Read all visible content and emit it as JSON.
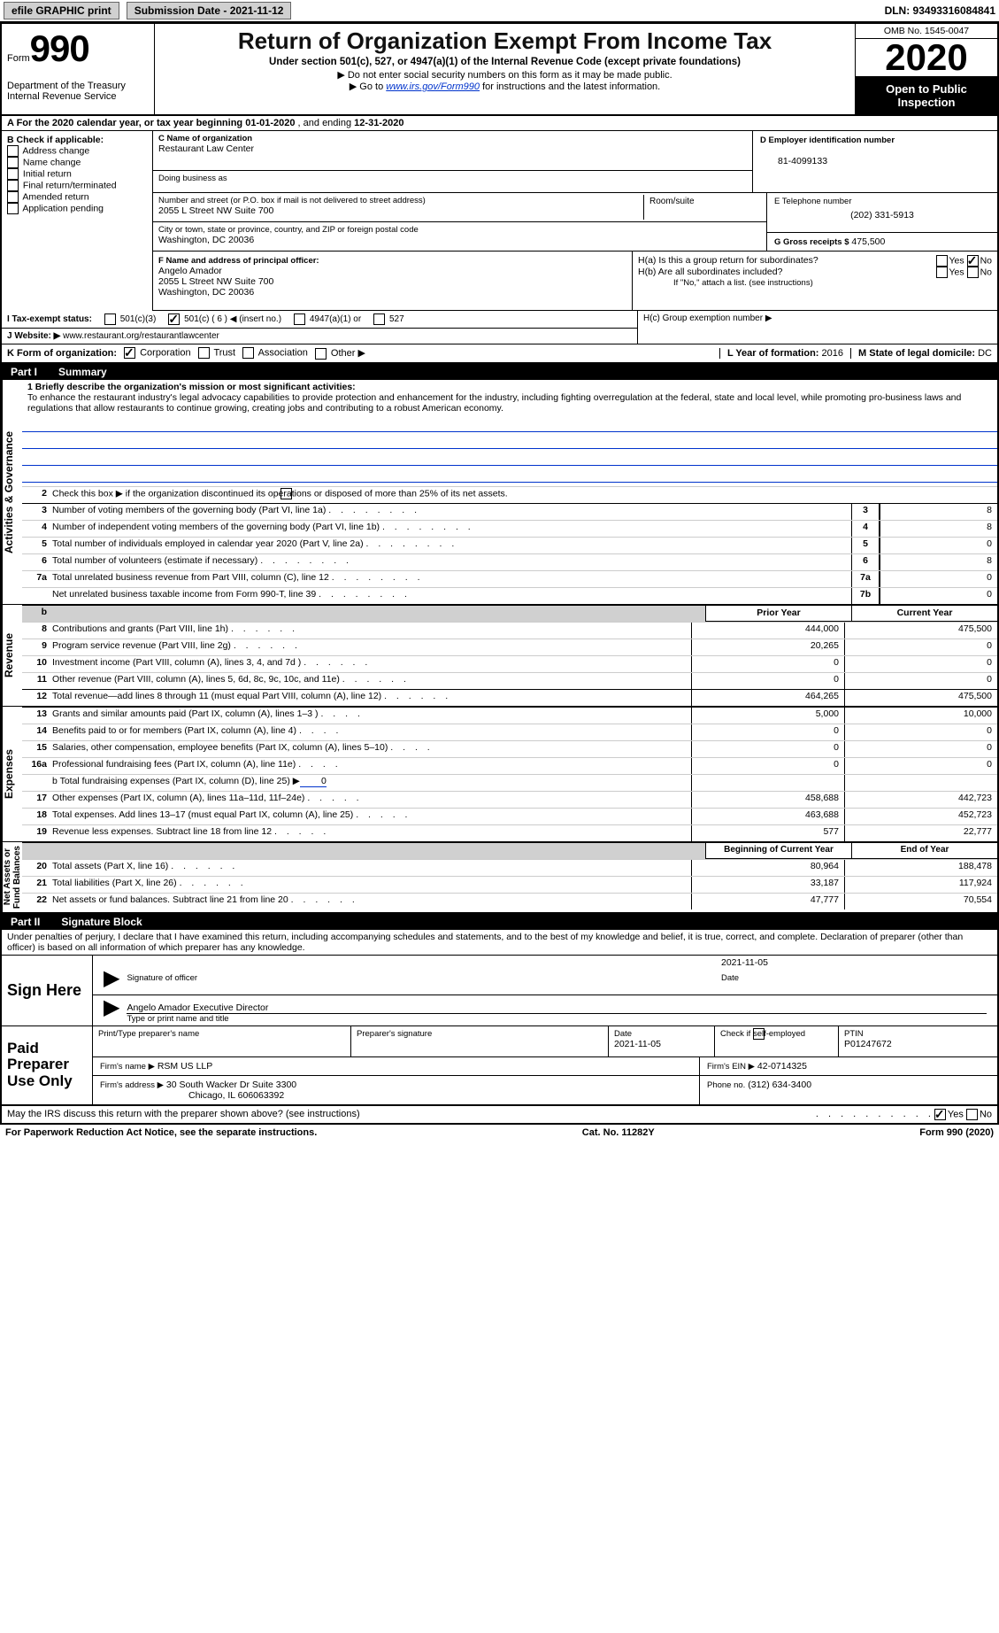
{
  "topbar": {
    "efile": "efile GRAPHIC print",
    "sub_label": "Submission Date - 2021-11-12",
    "dln": "DLN: 93493316084841"
  },
  "header": {
    "form_word": "Form",
    "form_num": "990",
    "dept": "Department of the Treasury\nInternal Revenue Service",
    "title": "Return of Organization Exempt From Income Tax",
    "subtitle": "Under section 501(c), 527, or 4947(a)(1) of the Internal Revenue Code (except private foundations)",
    "note1": "▶ Do not enter social security numbers on this form as it may be made public.",
    "note2a": "▶ Go to ",
    "note2_link": "www.irs.gov/Form990",
    "note2b": " for instructions and the latest information.",
    "omb": "OMB No. 1545-0047",
    "year": "2020",
    "open": "Open to Public Inspection"
  },
  "periodA": {
    "prefix": "A  For the 2020 calendar year, or tax year beginning ",
    "begin": "01-01-2020",
    "mid": "  , and ending ",
    "end": "12-31-2020"
  },
  "B": {
    "heading": "B Check if applicable:",
    "opts": [
      "Address change",
      "Name change",
      "Initial return",
      "Final return/terminated",
      "Amended return",
      "Application pending"
    ]
  },
  "C": {
    "label": "C Name of organization",
    "name": "Restaurant Law Center",
    "dba_label": "Doing business as",
    "street_label": "Number and street (or P.O. box if mail is not delivered to street address)",
    "street": "2055 L Street NW Suite 700",
    "room_label": "Room/suite",
    "city_label": "City or town, state or province, country, and ZIP or foreign postal code",
    "city": "Washington, DC  20036"
  },
  "D": {
    "label": "D Employer identification number",
    "ein": "81-4099133"
  },
  "E": {
    "label": "E Telephone number",
    "phone": "(202) 331-5913"
  },
  "G": {
    "label": "G Gross receipts $",
    "amount": "475,500"
  },
  "F": {
    "label": "F  Name and address of principal officer:",
    "name": "Angelo Amador",
    "addr1": "2055 L Street NW Suite 700",
    "addr2": "Washington, DC  20036"
  },
  "H": {
    "a": "H(a)  Is this a group return for subordinates?",
    "b": "H(b)  Are all subordinates included?",
    "b_note": "If \"No,\" attach a list. (see instructions)",
    "c": "H(c)  Group exemption number ▶"
  },
  "I": {
    "label": "I   Tax-exempt status:",
    "c3": "501(c)(3)",
    "c": "501(c) (",
    "c_num": "6",
    "c_tail": ") ◀ (insert no.)",
    "a4947": "4947(a)(1) or",
    "s527": "527"
  },
  "J": {
    "label": "J  Website: ▶",
    "site": " www.restaurant.org/restaurantlawcenter"
  },
  "K": {
    "label": "K Form of organization:",
    "opts": [
      "Corporation",
      "Trust",
      "Association",
      "Other ▶"
    ]
  },
  "L": {
    "label": "L Year of formation:",
    "val": "2016"
  },
  "M": {
    "label": "M State of legal domicile:",
    "val": "DC"
  },
  "partI": {
    "num": "Part I",
    "title": "Summary"
  },
  "summary": {
    "l1_label": "1  Briefly describe the organization's mission or most significant activities:",
    "mission": "To enhance the restaurant industry's legal advocacy capabilities to provide protection and enhancement for the industry, including fighting overregulation at the federal, state and local level, while promoting pro-business laws and regulations that allow restaurants to continue growing, creating jobs and contributing to a robust American economy.",
    "l2": "Check this box ▶        if the organization discontinued its operations or disposed of more than 25% of its net assets.",
    "lines_gov": [
      {
        "n": "3",
        "t": "Number of voting members of the governing body (Part VI, line 1a)",
        "box": "3",
        "v": "8"
      },
      {
        "n": "4",
        "t": "Number of independent voting members of the governing body (Part VI, line 1b)",
        "box": "4",
        "v": "8"
      },
      {
        "n": "5",
        "t": "Total number of individuals employed in calendar year 2020 (Part V, line 2a)",
        "box": "5",
        "v": "0"
      },
      {
        "n": "6",
        "t": "Total number of volunteers (estimate if necessary)",
        "box": "6",
        "v": "8"
      },
      {
        "n": "7a",
        "t": "Total unrelated business revenue from Part VIII, column (C), line 12",
        "box": "7a",
        "v": "0"
      },
      {
        "n": "",
        "t": "Net unrelated business taxable income from Form 990-T, line 39",
        "box": "7b",
        "v": "0"
      }
    ],
    "prior_hdr": "Prior Year",
    "current_hdr": "Current Year",
    "rev_lines": [
      {
        "n": "8",
        "t": "Contributions and grants (Part VIII, line 1h)",
        "p": "444,000",
        "c": "475,500"
      },
      {
        "n": "9",
        "t": "Program service revenue (Part VIII, line 2g)",
        "p": "20,265",
        "c": "0"
      },
      {
        "n": "10",
        "t": "Investment income (Part VIII, column (A), lines 3, 4, and 7d )",
        "p": "0",
        "c": "0"
      },
      {
        "n": "11",
        "t": "Other revenue (Part VIII, column (A), lines 5, 6d, 8c, 9c, 10c, and 11e)",
        "p": "0",
        "c": "0"
      },
      {
        "n": "12",
        "t": "Total revenue—add lines 8 through 11 (must equal Part VIII, column (A), line 12)",
        "p": "464,265",
        "c": "475,500"
      }
    ],
    "exp_lines": [
      {
        "n": "13",
        "t": "Grants and similar amounts paid (Part IX, column (A), lines 1–3 )",
        "p": "5,000",
        "c": "10,000"
      },
      {
        "n": "14",
        "t": "Benefits paid to or for members (Part IX, column (A), line 4)",
        "p": "0",
        "c": "0"
      },
      {
        "n": "15",
        "t": "Salaries, other compensation, employee benefits (Part IX, column (A), lines 5–10)",
        "p": "0",
        "c": "0"
      },
      {
        "n": "16a",
        "t": "Professional fundraising fees (Part IX, column (A), line 11e)",
        "p": "0",
        "c": "0"
      }
    ],
    "l16b": "b  Total fundraising expenses (Part IX, column (D), line 25) ▶",
    "l16b_val": "0",
    "exp_lines2": [
      {
        "n": "17",
        "t": "Other expenses (Part IX, column (A), lines 11a–11d, 11f–24e)",
        "p": "458,688",
        "c": "442,723"
      },
      {
        "n": "18",
        "t": "Total expenses. Add lines 13–17 (must equal Part IX, column (A), line 25)",
        "p": "463,688",
        "c": "452,723"
      },
      {
        "n": "19",
        "t": "Revenue less expenses. Subtract line 18 from line 12",
        "p": "577",
        "c": "22,777"
      }
    ],
    "na_hdr1": "Beginning of Current Year",
    "na_hdr2": "End of Year",
    "na_lines": [
      {
        "n": "20",
        "t": "Total assets (Part X, line 16)",
        "p": "80,964",
        "c": "188,478"
      },
      {
        "n": "21",
        "t": "Total liabilities (Part X, line 26)",
        "p": "33,187",
        "c": "117,924"
      },
      {
        "n": "22",
        "t": "Net assets or fund balances. Subtract line 21 from line 20",
        "p": "47,777",
        "c": "70,554"
      }
    ]
  },
  "vert": {
    "gov": "Activities & Governance",
    "rev": "Revenue",
    "exp": "Expenses",
    "na": "Net Assets or\nFund Balances"
  },
  "partII": {
    "num": "Part II",
    "title": "Signature Block"
  },
  "sig": {
    "penalty": "Under penalties of perjury, I declare that I have examined this return, including accompanying schedules and statements, and to the best of my knowledge and belief, it is true, correct, and complete. Declaration of preparer (other than officer) is based on all information of which preparer has any knowledge.",
    "sign_here": "Sign Here",
    "sig_of_officer": "Signature of officer",
    "sig_date": "2021-11-05",
    "officer_name": "Angelo Amador  Executive Director",
    "type_name": "Type or print name and title",
    "paid": "Paid Preparer Use Only",
    "prep_name_lbl": "Print/Type preparer's name",
    "prep_sig_lbl": "Preparer's signature",
    "date_lbl": "Date",
    "date_val": "2021-11-05",
    "check_self": "Check         if self-employed",
    "ptin_lbl": "PTIN",
    "ptin": "P01247672",
    "firm_name_lbl": "Firm's name    ▶",
    "firm_name": "RSM US LLP",
    "firm_ein_lbl": "Firm's EIN ▶",
    "firm_ein": "42-0714325",
    "firm_addr_lbl": "Firm's address ▶",
    "firm_addr1": "30 South Wacker Dr Suite 3300",
    "firm_addr2": "Chicago, IL  606063392",
    "phone_lbl": "Phone no.",
    "phone": "(312) 634-3400",
    "discuss": "May the IRS discuss this return with the preparer shown above? (see instructions)"
  },
  "footer": {
    "pra": "For Paperwork Reduction Act Notice, see the separate instructions.",
    "cat": "Cat. No. 11282Y",
    "form": "Form 990 (2020)"
  },
  "yesno": {
    "yes": "Yes",
    "no": "No"
  }
}
